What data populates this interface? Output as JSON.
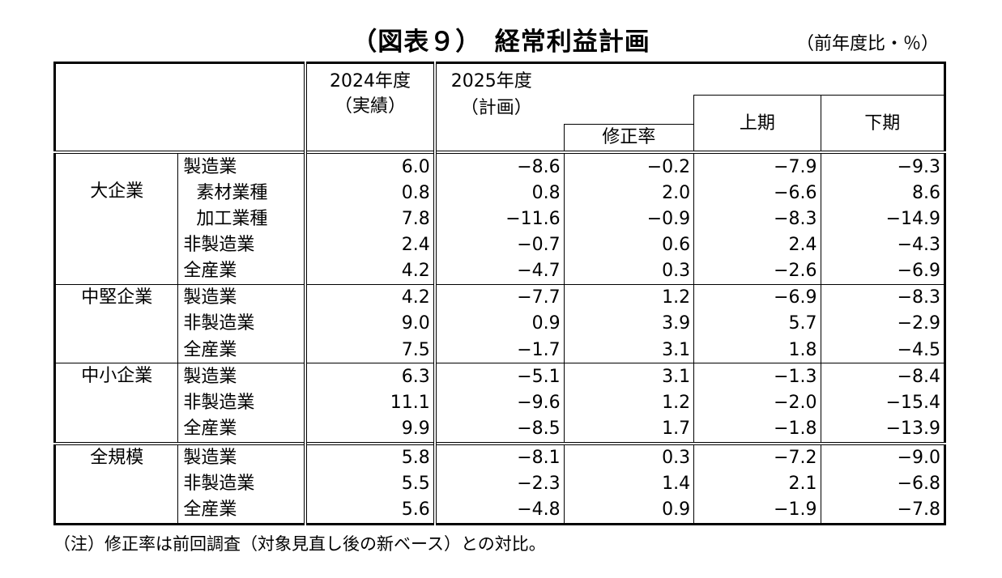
{
  "title": "（図表９）　経常利益計画",
  "unit": "（前年度比・％）",
  "headers": {
    "fy2024_line1": "2024年度",
    "fy2024_line2": "（実績）",
    "fy2025_line1": "2025年度",
    "fy2025_line2": "（計画）",
    "revision": "修正率",
    "first_half": "上期",
    "second_half": "下期"
  },
  "groups": [
    {
      "label": "大企業",
      "rows": [
        {
          "label": "製造業",
          "fy2024": "6.0",
          "fy2025": "−8.6",
          "revision": "−0.2",
          "h1": "−7.9",
          "h2": "−9.3"
        },
        {
          "label": "素材業種",
          "fy2024": "0.8",
          "fy2025": "0.8",
          "revision": "2.0",
          "h1": "−6.6",
          "h2": "8.6"
        },
        {
          "label": "加工業種",
          "fy2024": "7.8",
          "fy2025": "−11.6",
          "revision": "−0.9",
          "h1": "−8.3",
          "h2": "−14.9"
        },
        {
          "label": "非製造業",
          "fy2024": "2.4",
          "fy2025": "−0.7",
          "revision": "0.6",
          "h1": "2.4",
          "h2": "−4.3"
        },
        {
          "label": "全産業",
          "fy2024": "4.2",
          "fy2025": "−4.7",
          "revision": "0.3",
          "h1": "−2.6",
          "h2": "−6.9"
        }
      ]
    },
    {
      "label": "中堅企業",
      "rows": [
        {
          "label": "製造業",
          "fy2024": "4.2",
          "fy2025": "−7.7",
          "revision": "1.2",
          "h1": "−6.9",
          "h2": "−8.3"
        },
        {
          "label": "非製造業",
          "fy2024": "9.0",
          "fy2025": "0.9",
          "revision": "3.9",
          "h1": "5.7",
          "h2": "−2.9"
        },
        {
          "label": "全産業",
          "fy2024": "7.5",
          "fy2025": "−1.7",
          "revision": "3.1",
          "h1": "1.8",
          "h2": "−4.5"
        }
      ]
    },
    {
      "label": "中小企業",
      "rows": [
        {
          "label": "製造業",
          "fy2024": "6.3",
          "fy2025": "−5.1",
          "revision": "3.1",
          "h1": "−1.3",
          "h2": "−8.4"
        },
        {
          "label": "非製造業",
          "fy2024": "11.1",
          "fy2025": "−9.6",
          "revision": "1.2",
          "h1": "−2.0",
          "h2": "−15.4"
        },
        {
          "label": "全産業",
          "fy2024": "9.9",
          "fy2025": "−8.5",
          "revision": "1.7",
          "h1": "−1.8",
          "h2": "−13.9"
        }
      ]
    },
    {
      "label": "全規模",
      "rows": [
        {
          "label": "製造業",
          "fy2024": "5.8",
          "fy2025": "−8.1",
          "revision": "0.3",
          "h1": "−7.2",
          "h2": "−9.0"
        },
        {
          "label": "非製造業",
          "fy2024": "5.5",
          "fy2025": "−2.3",
          "revision": "1.4",
          "h1": "2.1",
          "h2": "−6.8"
        },
        {
          "label": "全産業",
          "fy2024": "5.6",
          "fy2025": "−4.8",
          "revision": "0.9",
          "h1": "−1.9",
          "h2": "−7.8"
        }
      ]
    }
  ],
  "note": "（注）修正率は前回調査（対象見直し後の新ベース）との対比。"
}
